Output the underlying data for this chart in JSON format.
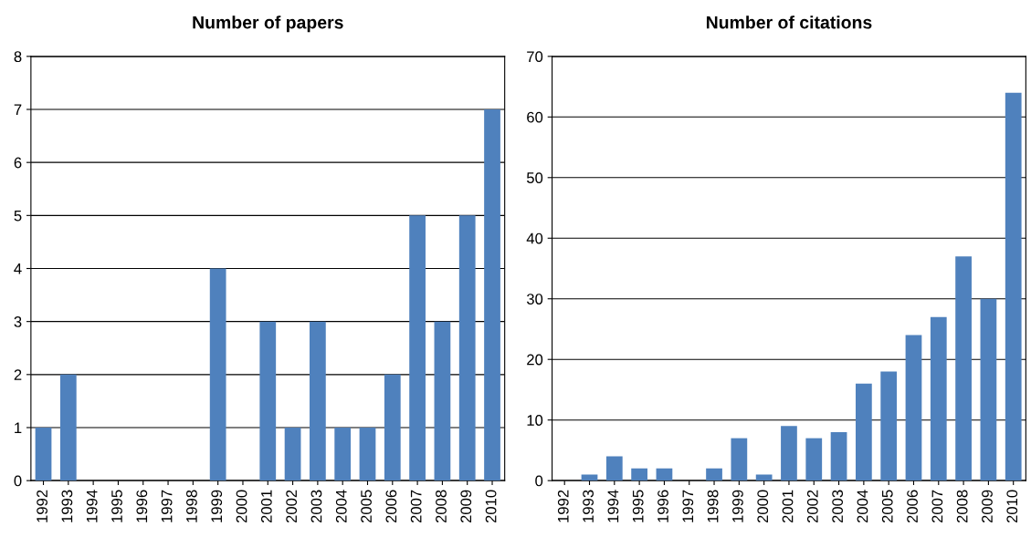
{
  "chart_data": [
    {
      "type": "bar",
      "title": "Number of papers",
      "categories": [
        "1992",
        "1993",
        "1994",
        "1995",
        "1996",
        "1997",
        "1998",
        "1999",
        "2000",
        "2001",
        "2002",
        "2003",
        "2004",
        "2005",
        "2006",
        "2007",
        "2008",
        "2009",
        "2010"
      ],
      "values": [
        1,
        2,
        0,
        0,
        0,
        0,
        0,
        4,
        0,
        3,
        1,
        3,
        1,
        1,
        2,
        5,
        3,
        5,
        7
      ],
      "color": "#4f81bd",
      "ylim": [
        0,
        8
      ],
      "yticks": [
        0,
        1,
        2,
        3,
        4,
        5,
        6,
        7,
        8
      ],
      "grid": "y",
      "legend": false
    },
    {
      "type": "bar",
      "title": "Number of citations",
      "categories": [
        "1992",
        "1993",
        "1994",
        "1995",
        "1996",
        "1997",
        "1998",
        "1999",
        "2000",
        "2001",
        "2002",
        "2003",
        "2004",
        "2005",
        "2006",
        "2007",
        "2008",
        "2009",
        "2010"
      ],
      "values": [
        0,
        1,
        4,
        2,
        2,
        0,
        2,
        7,
        1,
        9,
        7,
        8,
        16,
        18,
        24,
        27,
        37,
        30,
        64
      ],
      "color": "#4f81bd",
      "ylim": [
        0,
        70
      ],
      "yticks": [
        0,
        10,
        20,
        30,
        40,
        50,
        60,
        70
      ],
      "grid": "y",
      "legend": false
    }
  ]
}
